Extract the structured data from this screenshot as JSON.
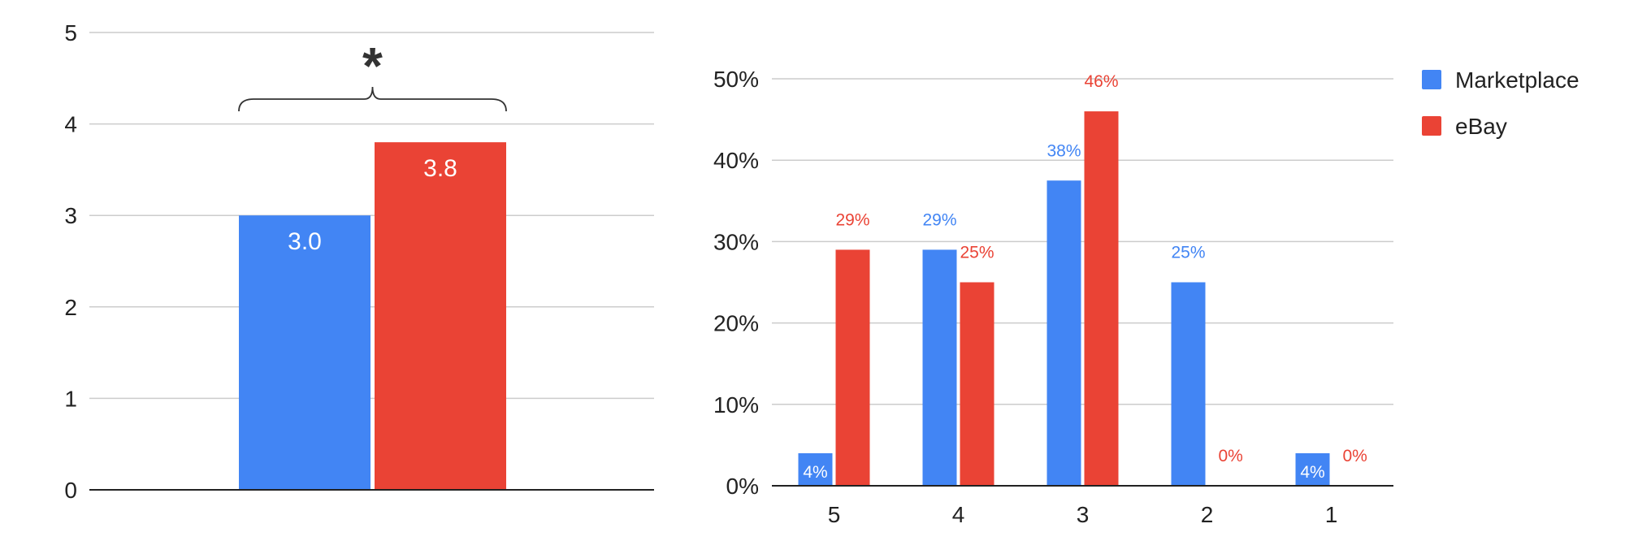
{
  "colors": {
    "marketplace": "#4285F4",
    "ebay": "#EA4335",
    "grid": "#cccccc",
    "axis": "#222222"
  },
  "chart_data": [
    {
      "type": "bar",
      "title": "",
      "xlabel": "",
      "ylabel": "",
      "ylim": [
        0,
        5
      ],
      "yticks": [
        "0",
        "1",
        "2",
        "3",
        "4",
        "5"
      ],
      "grid": true,
      "legend": "none",
      "series": [
        {
          "name": "Marketplace",
          "values": [
            3.0
          ],
          "labels": [
            "3.0"
          ]
        },
        {
          "name": "eBay",
          "values": [
            3.8
          ],
          "labels": [
            "3.8"
          ]
        }
      ],
      "annotation": "*"
    },
    {
      "type": "bar",
      "title": "",
      "xlabel": "",
      "ylabel": "",
      "ylim": [
        0,
        0.5
      ],
      "yticks": [
        "0%",
        "10%",
        "20%",
        "30%",
        "40%",
        "50%"
      ],
      "grid": true,
      "legend": "right",
      "categories": [
        "5",
        "4",
        "3",
        "2",
        "1"
      ],
      "series": [
        {
          "name": "Marketplace",
          "values": [
            0.04,
            0.29,
            0.375,
            0.25,
            0.04
          ],
          "labels": [
            "4%",
            "29%",
            "38%",
            "25%",
            "4%"
          ]
        },
        {
          "name": "eBay",
          "values": [
            0.29,
            0.25,
            0.46,
            0,
            0
          ],
          "labels": [
            "29%",
            "25%",
            "46%",
            "0%",
            "0%"
          ]
        }
      ]
    }
  ]
}
